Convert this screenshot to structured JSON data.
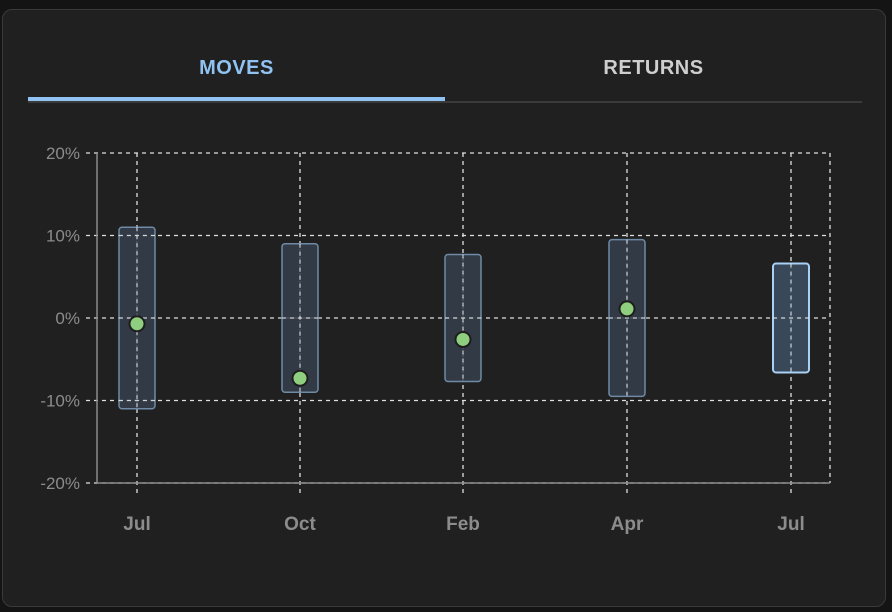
{
  "tabs": {
    "moves_label": "MOVES",
    "returns_label": "RETURNS",
    "active": "MOVES"
  },
  "colors": {
    "accent": "#90c2f2",
    "point": "#8fce7e",
    "box_fill": "#36404c",
    "box_stroke": "#6e8aa6",
    "box_highlight_fill": "#3b4c5e",
    "box_highlight_stroke": "#a9d0f5"
  },
  "chart_data": {
    "type": "range-bar",
    "title": "",
    "xlabel": "",
    "ylabel": "",
    "categories": [
      "Jul",
      "Oct",
      "Feb",
      "Apr",
      "Jul"
    ],
    "ylim": [
      -20,
      20
    ],
    "yticks": [
      {
        "value": 20,
        "label": "20%"
      },
      {
        "value": 10,
        "label": "10%"
      },
      {
        "value": 0,
        "label": "0%"
      },
      {
        "value": -10,
        "label": "-10%"
      },
      {
        "value": -20,
        "label": "-20%"
      }
    ],
    "grid": true,
    "grid_style": "dashed",
    "ranges": [
      {
        "low": -11,
        "high": 11,
        "highlight": false
      },
      {
        "low": -9,
        "high": 9,
        "highlight": false
      },
      {
        "low": -7.7,
        "high": 7.7,
        "highlight": false
      },
      {
        "low": -9.5,
        "high": 9.5,
        "highlight": false
      },
      {
        "low": -6.6,
        "high": 6.6,
        "highlight": true
      }
    ],
    "points": [
      -0.7,
      -7.3,
      -2.6,
      1.1,
      null
    ]
  }
}
